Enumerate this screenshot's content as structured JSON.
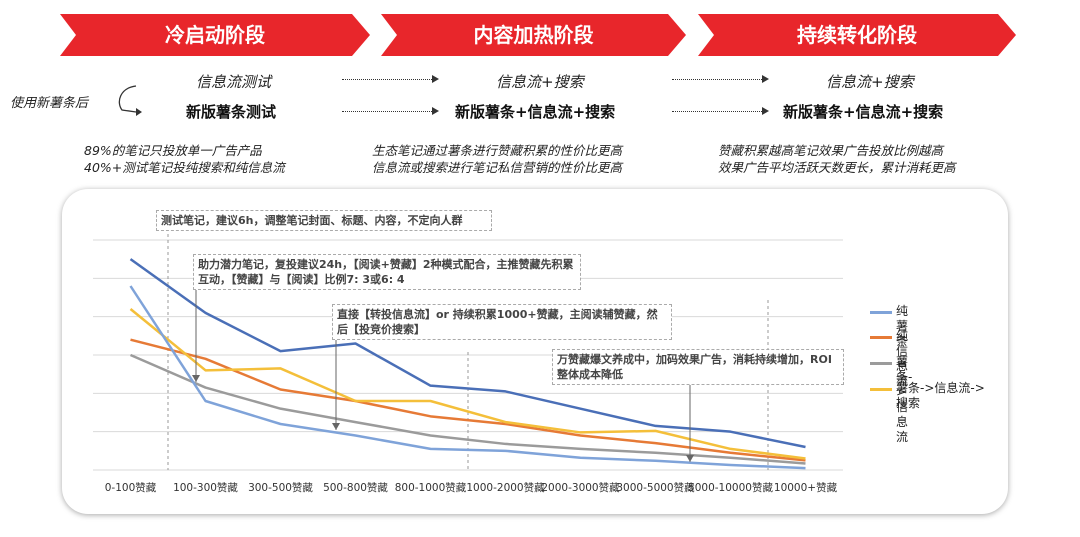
{
  "stages": [
    {
      "label": "冷启动阶段"
    },
    {
      "label": "内容加热阶段"
    },
    {
      "label": "持续转化阶段"
    }
  ],
  "left_label": "使用新薯条后",
  "flow": {
    "col1": {
      "top": "信息流测试",
      "bottom": "新版薯条测试"
    },
    "col2": {
      "top": "信息流+搜索",
      "bottom": "新版薯条+信息流+搜索"
    },
    "col3": {
      "top": "信息流+搜索",
      "bottom": "新版薯条+信息流+搜索"
    }
  },
  "notes": {
    "col1": [
      "89%的笔记只投放单一广告产品",
      "40%+测试笔记投纯搜索和纯信息流"
    ],
    "col2": [
      "生态笔记通过薯条进行赞藏积累的性价比更高",
      "信息流或搜索进行笔记私信营销的性价比更高"
    ],
    "col3": [
      "赞藏积累越高笔记效果广告投放比例越高",
      "效果广告平均活跃天数更长，累计消耗更高"
    ]
  },
  "annotations": [
    {
      "text": "测试笔记，建议6h，调整笔记封面、标题、内容，不定向人群"
    },
    {
      "text": "助力潜力笔记，复投建议24h，【阅读+赞藏】2种模式配合，主推赞藏先积累互动，【赞藏】与【阅读】比例7: 3或6: 4"
    },
    {
      "text": "直接【转投信息流】or 持续积累1000+赞藏，主阅读辅赞藏，然后【投竞价搜索】"
    },
    {
      "text": "万赞藏爆文养成中，加码效果广告，消耗持续增加，ROI整体成本降低"
    }
  ],
  "colors": {
    "banner": "#e8262b",
    "s1": "#4a6fb7",
    "s2": "#e67a36",
    "s3": "#9b9b9b",
    "s4": "#f4bf3a",
    "s1b": "#7fa3d9",
    "grid": "#d9d9d9"
  },
  "chart_data": {
    "type": "line",
    "title": "",
    "xlabel": "",
    "ylabel": "",
    "grid": true,
    "legend_position": "right",
    "categories": [
      "0-100赞藏",
      "100-300赞藏",
      "300-500赞藏",
      "500-800赞藏",
      "800-1000赞藏",
      "1000-2000赞藏",
      "2000-3000赞藏",
      "3000-5000赞藏",
      "5000-10000赞藏",
      "10000+赞藏"
    ],
    "ylim": [
      0,
      6
    ],
    "series": [
      {
        "name": "纯薯条",
        "values": [
          5.5,
          4.1,
          3.1,
          3.3,
          2.2,
          2.05,
          1.6,
          1.15,
          1.0,
          0.6
        ]
      },
      {
        "name": "纯信息流",
        "values": [
          3.4,
          2.9,
          2.1,
          1.8,
          1.4,
          1.2,
          0.9,
          0.7,
          0.45,
          0.25
        ]
      },
      {
        "name": "薯条->信息流",
        "values": [
          3.0,
          2.15,
          1.6,
          1.25,
          0.9,
          0.68,
          0.55,
          0.45,
          0.32,
          0.17
        ]
      },
      {
        "name": "薯条->信息流->搜索",
        "values": [
          4.2,
          2.6,
          2.65,
          1.8,
          1.8,
          1.25,
          0.98,
          1.02,
          0.55,
          0.3
        ]
      },
      {
        "name": "",
        "values": [
          4.8,
          1.8,
          1.2,
          0.9,
          0.55,
          0.5,
          0.32,
          0.24,
          0.13,
          0.05
        ]
      }
    ]
  }
}
